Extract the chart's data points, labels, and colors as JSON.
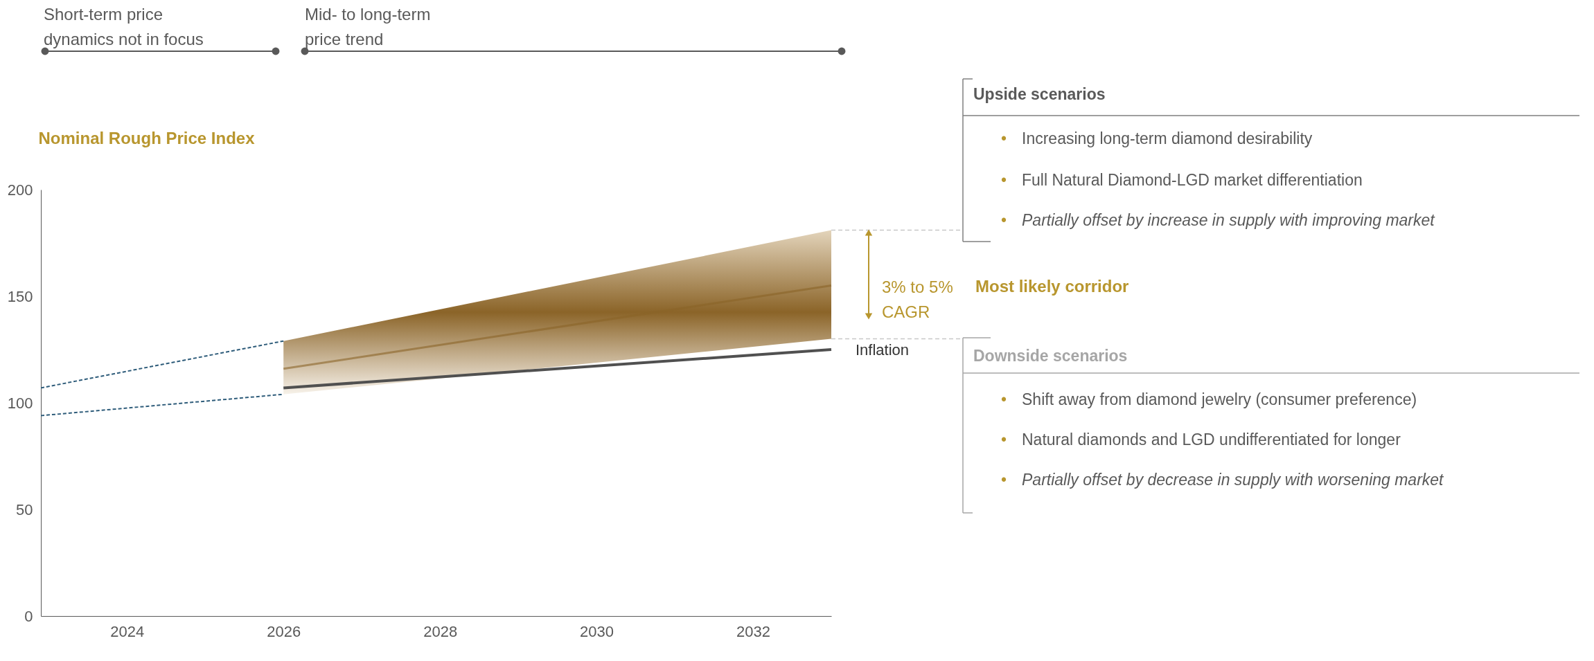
{
  "chart_data": {
    "type": "line",
    "ylabel": "Nominal Rough Price Index",
    "xlim": [
      2022.9,
      2033
    ],
    "xticks": [
      2024,
      2026,
      2028,
      2030,
      2032
    ],
    "ylim": [
      0,
      200
    ],
    "yticks": [
      0,
      50,
      100,
      150,
      200
    ],
    "series": [
      {
        "color": "#8b6428",
        "x": [
          2026,
          2033
        ],
        "values": [
          116,
          155
        ],
        "lower": [
          104,
          130
        ],
        "upper": [
          129,
          181
        ]
      },
      {
        "type": "line",
        "name": "Inflation",
        "color": "#505050",
        "x": [
          2026,
          2033
        ],
        "values": [
          107,
          125
        ]
      },
      {
        "type": "line",
        "line_style": "dashed",
        "color": "#2e5c7a",
        "x": [
          2022.9,
          2026
        ],
        "values": [
          107,
          129
        ]
      },
      {
        "type": "line",
        "line_style": "dashed",
        "color": "#2e5c7a",
        "x": [
          2022.9,
          2026
        ],
        "values": [
          94,
          104
        ]
      }
    ],
    "annotations": [
      "Short-term price\ndynamics not in focus",
      "Mid- to long-term\nprice trend",
      "3% to 5%\nCAGR",
      "Upside scenarios",
      "•\tIncreasing long-term diamond desirability",
      "•\tFull Natural Diamond-LGD market differentiation",
      "•\tPartially offset by increase in supply with improving market",
      "Most likely corridor",
      "Downside scenarios",
      "•\tShift away from diamond jewelry (consumer preference)",
      "•\tNatural diamonds and LGD undifferentiated for longer",
      "•\tPartially offset by decrease in supply with worsening market"
    ]
  }
}
